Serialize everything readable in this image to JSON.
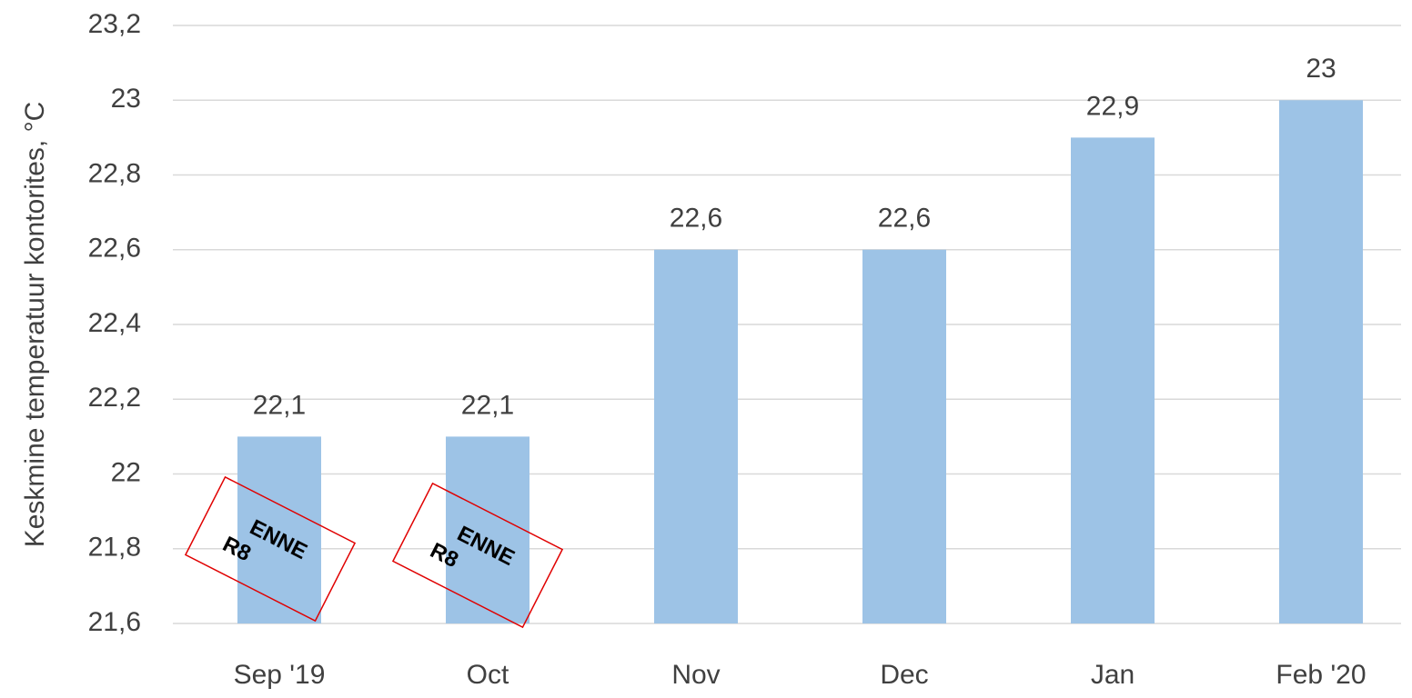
{
  "chart_data": {
    "type": "bar",
    "y_label": "Keskmine temperatuur kontorites, °C",
    "categories": [
      "Sep '19",
      "Oct",
      "Nov",
      "Dec",
      "Jan",
      "Feb '20"
    ],
    "values": [
      22.1,
      22.1,
      22.6,
      22.6,
      22.9,
      23
    ],
    "value_labels": [
      "22,1",
      "22,1",
      "22,6",
      "22,6",
      "22,9",
      "23"
    ],
    "color": "#9dc3e6",
    "ylim": [
      21.6,
      23.2
    ],
    "yticks": [
      {
        "value": 21.6,
        "label": "21,6"
      },
      {
        "value": 21.8,
        "label": "21,8"
      },
      22,
      {
        "value": 22.2,
        "label": "22,2"
      },
      {
        "value": 22.4,
        "label": "22,4"
      },
      {
        "value": 22.6,
        "label": "22,6"
      },
      {
        "value": 22.8,
        "label": "22,8"
      },
      23,
      {
        "value": 23.2,
        "label": "23,2"
      }
    ],
    "grid": true,
    "annotations": [
      [
        "ENNE",
        "R8"
      ],
      [
        "ENNE",
        "R8"
      ]
    ],
    "annotation_color": "#e00000"
  }
}
